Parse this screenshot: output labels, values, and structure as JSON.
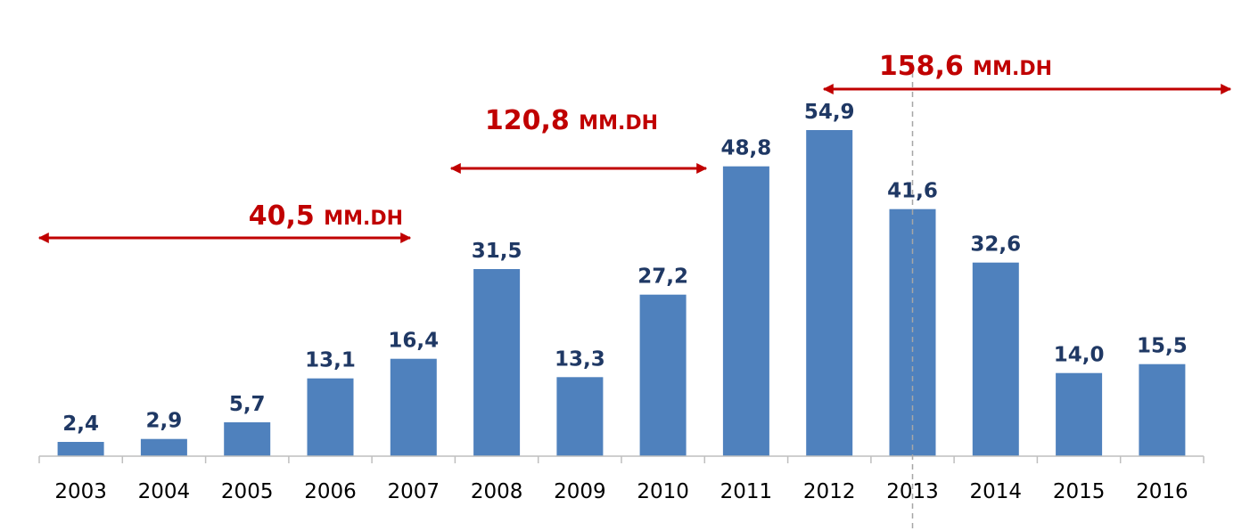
{
  "chart_data": {
    "type": "bar",
    "categories": [
      "2003",
      "2004",
      "2005",
      "2006",
      "2007",
      "2008",
      "2009",
      "2010",
      "2011",
      "2012",
      "2013",
      "2014",
      "2015",
      "2016"
    ],
    "values": [
      2.4,
      2.9,
      5.7,
      13.1,
      16.4,
      31.5,
      13.3,
      27.2,
      48.8,
      54.9,
      41.6,
      32.6,
      14.0,
      15.5
    ],
    "data_labels": [
      "2,4",
      "2,9",
      "5,7",
      "13,1",
      "16,4",
      "31,5",
      "13,3",
      "27,2",
      "48,8",
      "54,9",
      "41,6",
      "32,6",
      "14,0",
      "15,5"
    ],
    "ylim": [
      0,
      60
    ],
    "grid": false,
    "legend": "none",
    "bar_color": "#4f81bd",
    "label_color": "#1f3864",
    "annotation_color": "#c00000",
    "annotations": [
      {
        "value": "40,5",
        "unit": "MM.DH",
        "from": "2003",
        "to": "2007"
      },
      {
        "value": "120,8",
        "unit": "MM.DH",
        "from": "2008",
        "to": "2011"
      },
      {
        "value": "158,6",
        "unit": "MM.DH",
        "from": "2012",
        "to": "2016"
      }
    ],
    "reference_line_category": "2013"
  }
}
